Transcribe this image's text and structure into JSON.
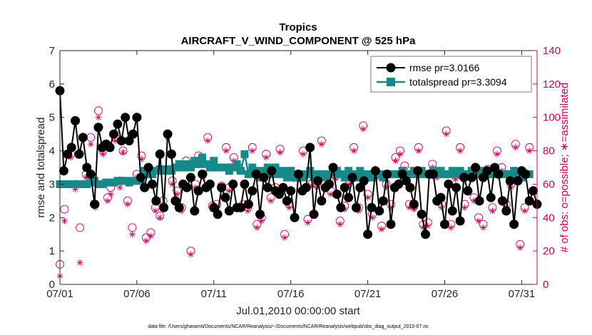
{
  "colors": {
    "rmse": "#000000",
    "spread": "#168a88",
    "obs": "#d6005c",
    "axis": "#262626"
  },
  "chart_data": {
    "type": "line",
    "title": "Tropics",
    "subtitle": "AIRCRAFT_V_WIND_COMPONENT @ 525 hPa",
    "xlabel": "Jul.01,2010 00:00:00 start",
    "ylabel": "rmse and totalspread",
    "ylabel_right": "# of obs: o=possible; ∗=assimilated",
    "footnote": "data file: /Users/gharamti/Documents/NCAR/Reanalysis/~/Documents/NCAR/Reanalysis/webpub/obs_diag_output_2010-07.nc",
    "xlim": [
      1,
      32
    ],
    "ylim": [
      0,
      7
    ],
    "ylim_right": [
      0,
      140
    ],
    "x_ticks": [
      1,
      6,
      11,
      16,
      21,
      26,
      31
    ],
    "x_tick_labels": [
      "07/01",
      "07/06",
      "07/11",
      "07/16",
      "07/21",
      "07/26",
      "07/31"
    ],
    "y_ticks": [
      0,
      1,
      2,
      3,
      4,
      5,
      6,
      7
    ],
    "y_tick_labels": [
      "0",
      "1",
      "2",
      "3",
      "4",
      "5",
      "6",
      "7"
    ],
    "y_ticks_right": [
      0,
      20,
      40,
      60,
      80,
      100,
      120,
      140
    ],
    "y_tick_labels_right": [
      "0",
      "20",
      "40",
      "60",
      "80",
      "100",
      "120",
      "140"
    ],
    "x_start": 1.0,
    "x_step": 0.25,
    "legend": [
      {
        "name": "rmse pr=3.0166"
      },
      {
        "name": "totalspread pr=3.3094"
      }
    ],
    "series": [
      {
        "name": "rmse",
        "values": [
          5.8,
          3.4,
          3.9,
          4.1,
          4.9,
          3.9,
          4.4,
          3.5,
          3.3,
          2.4,
          4.7,
          4.1,
          4.2,
          4.1,
          4.5,
          4.8,
          4.3,
          5.0,
          4.3,
          4.5,
          5.0,
          3.2,
          2.9,
          3.5,
          3.0,
          2.5,
          3.9,
          2.3,
          4.5,
          3.9,
          2.5,
          2.3,
          3.0,
          2.9,
          3.2,
          2.2,
          2.8,
          3.3,
          2.9,
          3.0,
          2.3,
          2.1,
          2.9,
          2.6,
          2.2,
          3.0,
          2.3,
          2.3,
          3.0,
          2.4,
          2.8,
          3.3,
          2.1,
          3.2,
          2.9,
          3.4,
          2.8,
          2.7,
          2.9,
          2.5,
          2.8,
          2.0,
          3.3,
          2.8,
          2.9,
          4.1,
          2.1,
          3.1,
          2.5,
          2.9,
          3.0,
          3.5,
          2.7,
          2.3,
          2.9,
          2.6,
          3.2,
          2.3,
          2.9,
          3.1,
          1.5,
          2.3,
          3.4,
          2.2,
          2.5,
          3.3,
          1.8,
          2.9,
          3.0,
          3.3,
          3.1,
          2.9,
          2.4,
          3.4,
          2.1,
          1.5,
          3.3,
          3.3,
          2.5,
          2.6,
          1.8,
          3.0,
          2.2,
          2.9,
          1.9,
          3.2,
          2.8,
          3.2,
          3.5,
          2.5,
          3.2,
          3.4,
          2.6,
          3.5,
          3.3,
          2.5,
          2.2,
          3.1,
          1.8,
          3.1,
          3.4,
          3.3,
          2.5,
          2.8,
          2.4
        ],
        "color": "#000000"
      },
      {
        "name": "totalspread",
        "values": [
          3.0,
          3.0,
          3.0,
          3.0,
          3.0,
          3.0,
          3.0,
          3.0,
          3.05,
          3.1,
          3.0,
          3.0,
          3.05,
          3.05,
          3.05,
          3.1,
          3.1,
          3.1,
          3.05,
          3.1,
          3.1,
          3.1,
          3.4,
          3.3,
          3.3,
          3.4,
          3.45,
          3.4,
          3.45,
          3.4,
          3.5,
          3.6,
          3.5,
          3.6,
          3.5,
          3.7,
          3.6,
          3.8,
          3.6,
          3.5,
          3.7,
          3.5,
          3.5,
          3.5,
          3.4,
          3.5,
          3.6,
          3.4,
          3.9,
          3.3,
          3.5,
          3.4,
          3.2,
          3.4,
          3.5,
          3.3,
          3.5,
          3.3,
          3.4,
          3.2,
          3.4,
          3.2,
          3.3,
          3.2,
          3.3,
          3.4,
          3.2,
          3.3,
          3.3,
          3.2,
          3.3,
          3.3,
          3.4,
          3.3,
          3.2,
          3.4,
          3.3,
          3.2,
          3.4,
          3.3,
          3.3,
          3.2,
          3.3,
          3.3,
          3.2,
          3.3,
          3.3,
          3.3,
          3.3,
          3.4,
          3.3,
          3.3,
          3.4,
          3.3,
          3.4,
          3.3,
          3.3,
          3.4,
          3.3,
          3.4,
          3.3,
          3.3,
          3.4,
          3.3,
          3.4,
          3.3,
          3.3,
          3.4,
          3.3,
          3.3,
          3.4,
          3.3,
          3.3,
          3.4,
          3.3,
          3.3,
          3.3,
          3.3,
          3.4,
          3.3,
          3.2,
          3.3,
          3.3
        ],
        "color": "#168a88"
      },
      {
        "name": "obs_possible",
        "axis": "right",
        "x": [
          1.0,
          1.3,
          1.7,
          2.0,
          2.3,
          2.7,
          3.0,
          3.3,
          3.5,
          3.8,
          4.1,
          4.3,
          4.6,
          4.9,
          5.1,
          5.4,
          5.7,
          6.0,
          6.3,
          6.6,
          6.9,
          7.2,
          7.5,
          7.7,
          8.0,
          8.3,
          8.6,
          8.9,
          9.2,
          9.5,
          9.8,
          10.0,
          10.3,
          10.6,
          10.9,
          11.2,
          11.5,
          11.8,
          12.0,
          12.3,
          12.6,
          12.9,
          13.2,
          13.5,
          13.8,
          14.1,
          14.4,
          14.7,
          15.0,
          15.3,
          15.6,
          15.9,
          16.2,
          16.5,
          16.8,
          17.1,
          17.4,
          17.7,
          18.0,
          18.3,
          18.6,
          18.9,
          19.2,
          19.5,
          19.8,
          20.1,
          20.4,
          20.7,
          21.0,
          21.3,
          21.6,
          21.9,
          22.2,
          22.5,
          22.8,
          23.1,
          23.4,
          23.7,
          24.0,
          24.3,
          24.6,
          24.9,
          25.2,
          25.5,
          25.8,
          26.1,
          26.4,
          26.7,
          27.0,
          27.3,
          27.6,
          27.9,
          28.2,
          28.5,
          28.8,
          29.1,
          29.4,
          29.7,
          30.0,
          30.3,
          30.6,
          30.9,
          31.2,
          31.5
        ],
        "values": [
          12,
          45,
          78,
          60,
          34,
          66,
          88,
          48,
          104,
          80,
          52,
          58,
          88,
          62,
          80,
          50,
          34,
          66,
          77,
          28,
          31,
          46,
          41,
          50,
          90,
          62,
          56,
          46,
          74,
          20,
          60,
          77,
          66,
          88,
          47,
          48,
          59,
          82,
          58,
          76,
          70,
          48,
          46,
          82,
          36,
          40,
          78,
          52,
          58,
          81,
          30,
          48,
          65,
          65,
          80,
          39,
          61,
          60,
          86,
          64,
          56,
          65,
          38,
          47,
          62,
          82,
          46,
          95,
          54,
          42,
          66,
          35,
          60,
          48,
          76,
          80,
          71,
          48,
          47,
          82,
          36,
          37,
          72,
          66,
          48,
          92,
          36,
          65,
          82,
          48,
          66,
          52,
          40,
          36,
          69,
          46,
          80,
          70,
          48,
          60,
          84,
          24,
          46,
          82
        ],
        "color": "#d6005c"
      },
      {
        "name": "obs_assimilated",
        "axis": "right",
        "x": [
          1.0,
          1.3,
          1.7,
          2.0,
          2.3,
          2.7,
          3.0,
          3.3,
          3.5,
          3.8,
          4.1,
          4.3,
          4.6,
          4.9,
          5.1,
          5.4,
          5.7,
          6.0,
          6.3,
          6.6,
          6.9,
          7.2,
          7.5,
          7.7,
          8.0,
          8.3,
          8.6,
          8.9,
          9.2,
          9.5,
          9.8,
          10.0,
          10.3,
          10.6,
          10.9,
          11.2,
          11.5,
          11.8,
          12.0,
          12.3,
          12.6,
          12.9,
          13.2,
          13.5,
          13.8,
          14.1,
          14.4,
          14.7,
          15.0,
          15.3,
          15.6,
          15.9,
          16.2,
          16.5,
          16.8,
          17.1,
          17.4,
          17.7,
          18.0,
          18.3,
          18.6,
          18.9,
          19.2,
          19.5,
          19.8,
          20.1,
          20.4,
          20.7,
          21.0,
          21.3,
          21.6,
          21.9,
          22.2,
          22.5,
          22.8,
          23.1,
          23.4,
          23.7,
          24.0,
          24.3,
          24.6,
          24.9,
          25.2,
          25.5,
          25.8,
          26.1,
          26.4,
          26.7,
          27.0,
          27.3,
          27.6,
          27.9,
          28.2,
          28.5,
          28.8,
          29.1,
          29.4,
          29.7,
          30.0,
          30.3,
          30.6,
          30.9,
          31.2,
          31.5
        ],
        "values": [
          5,
          38,
          76,
          57,
          13,
          64,
          84,
          46,
          100,
          78,
          50,
          54,
          86,
          58,
          79,
          48,
          30,
          64,
          75,
          26,
          29,
          44,
          40,
          48,
          88,
          60,
          54,
          44,
          72,
          18,
          58,
          75,
          64,
          86,
          45,
          46,
          57,
          80,
          56,
          74,
          68,
          46,
          44,
          80,
          34,
          38,
          76,
          50,
          56,
          79,
          28,
          46,
          63,
          63,
          78,
          37,
          59,
          58,
          84,
          62,
          54,
          63,
          36,
          45,
          60,
          80,
          44,
          93,
          52,
          40,
          64,
          33,
          58,
          46,
          74,
          78,
          69,
          46,
          45,
          80,
          34,
          35,
          70,
          64,
          46,
          90,
          34,
          63,
          80,
          46,
          64,
          50,
          38,
          34,
          67,
          44,
          78,
          68,
          46,
          58,
          82,
          22,
          44,
          80
        ],
        "color": "#d6005c"
      }
    ]
  }
}
